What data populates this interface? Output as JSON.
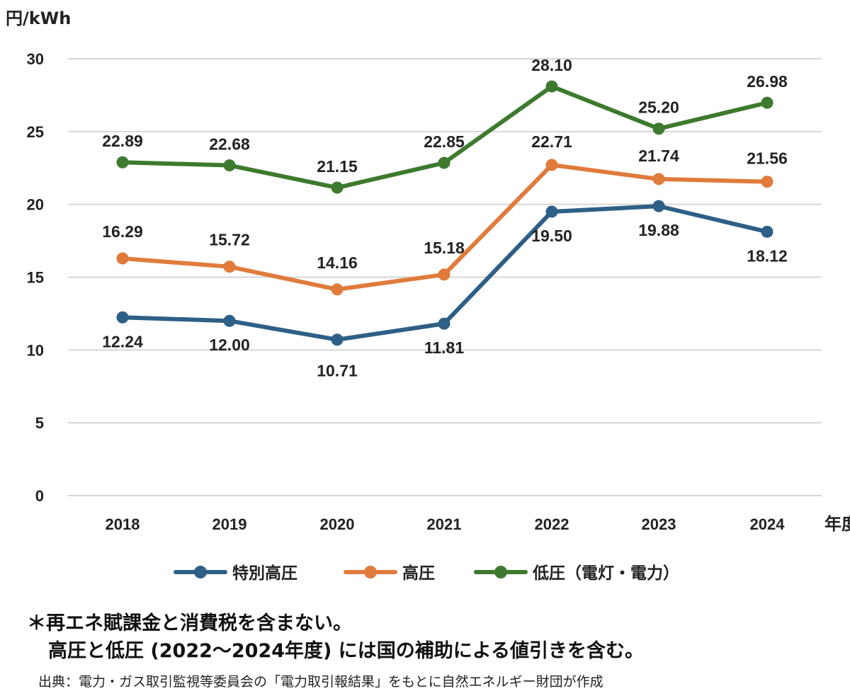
{
  "chart_data": {
    "type": "line",
    "ylabel": "円/kWh",
    "xlabel": "年度",
    "ylim": [
      0,
      30
    ],
    "yticks": [
      0,
      5,
      10,
      15,
      20,
      25,
      30
    ],
    "grid": true,
    "legend_position": "bottom",
    "categories": [
      "2018",
      "2019",
      "2020",
      "2021",
      "2022",
      "2023",
      "2024"
    ],
    "series": [
      {
        "name": "特別高圧",
        "color": "#2e5f86",
        "values": [
          12.24,
          12.0,
          10.71,
          11.81,
          19.5,
          19.88,
          18.12
        ],
        "labels": [
          "12.24",
          "12.00",
          "10.71",
          "11.81",
          "19.50",
          "19.88",
          "18.12"
        ]
      },
      {
        "name": "高圧",
        "color": "#e07b3c",
        "values": [
          16.29,
          15.72,
          14.16,
          15.18,
          22.71,
          21.74,
          21.56
        ],
        "labels": [
          "16.29",
          "15.72",
          "14.16",
          "15.18",
          "22.71",
          "21.74",
          "21.56"
        ]
      },
      {
        "name": "低圧（電灯・電力）",
        "color": "#3d7a2e",
        "values": [
          22.89,
          22.68,
          21.15,
          22.85,
          28.1,
          25.2,
          26.98
        ],
        "labels": [
          "22.89",
          "22.68",
          "21.15",
          "22.85",
          "28.10",
          "25.20",
          "26.98"
        ]
      }
    ]
  },
  "notes": {
    "line1": "＊再エネ賦課金と消費税を含まない。",
    "line2": "高圧と低圧 (2022～2024年度) には国の補助による値引きを含む。"
  },
  "source": "出典：電力・ガス取引監視等委員会の「電力取引報結果」をもとに自然エネルギー財団が作成"
}
